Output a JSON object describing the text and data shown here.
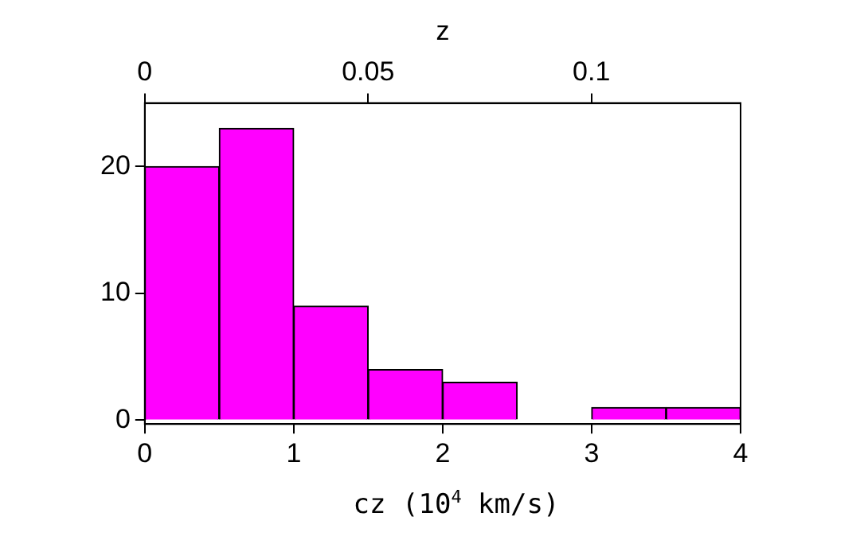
{
  "chart_data": {
    "type": "histogram",
    "xlabel": "cz (10$^{4}$ km/s)",
    "x2label": "z",
    "bins": [
      0,
      0.5,
      1,
      1.5,
      2,
      2.5,
      3,
      3.5,
      4
    ],
    "values": [
      20,
      23,
      9,
      4,
      3,
      0,
      1,
      1
    ],
    "color": "#ff00ff",
    "xlim": [
      0,
      4
    ],
    "xticks": [
      0,
      1,
      2,
      3,
      4
    ],
    "ylim": [
      -0.3,
      25
    ],
    "yticks": [
      0,
      10,
      20
    ],
    "x2lim": [
      0,
      0.1334
    ],
    "x2ticks": [
      0,
      0.05,
      0.1
    ],
    "grid": false,
    "legend": false
  }
}
